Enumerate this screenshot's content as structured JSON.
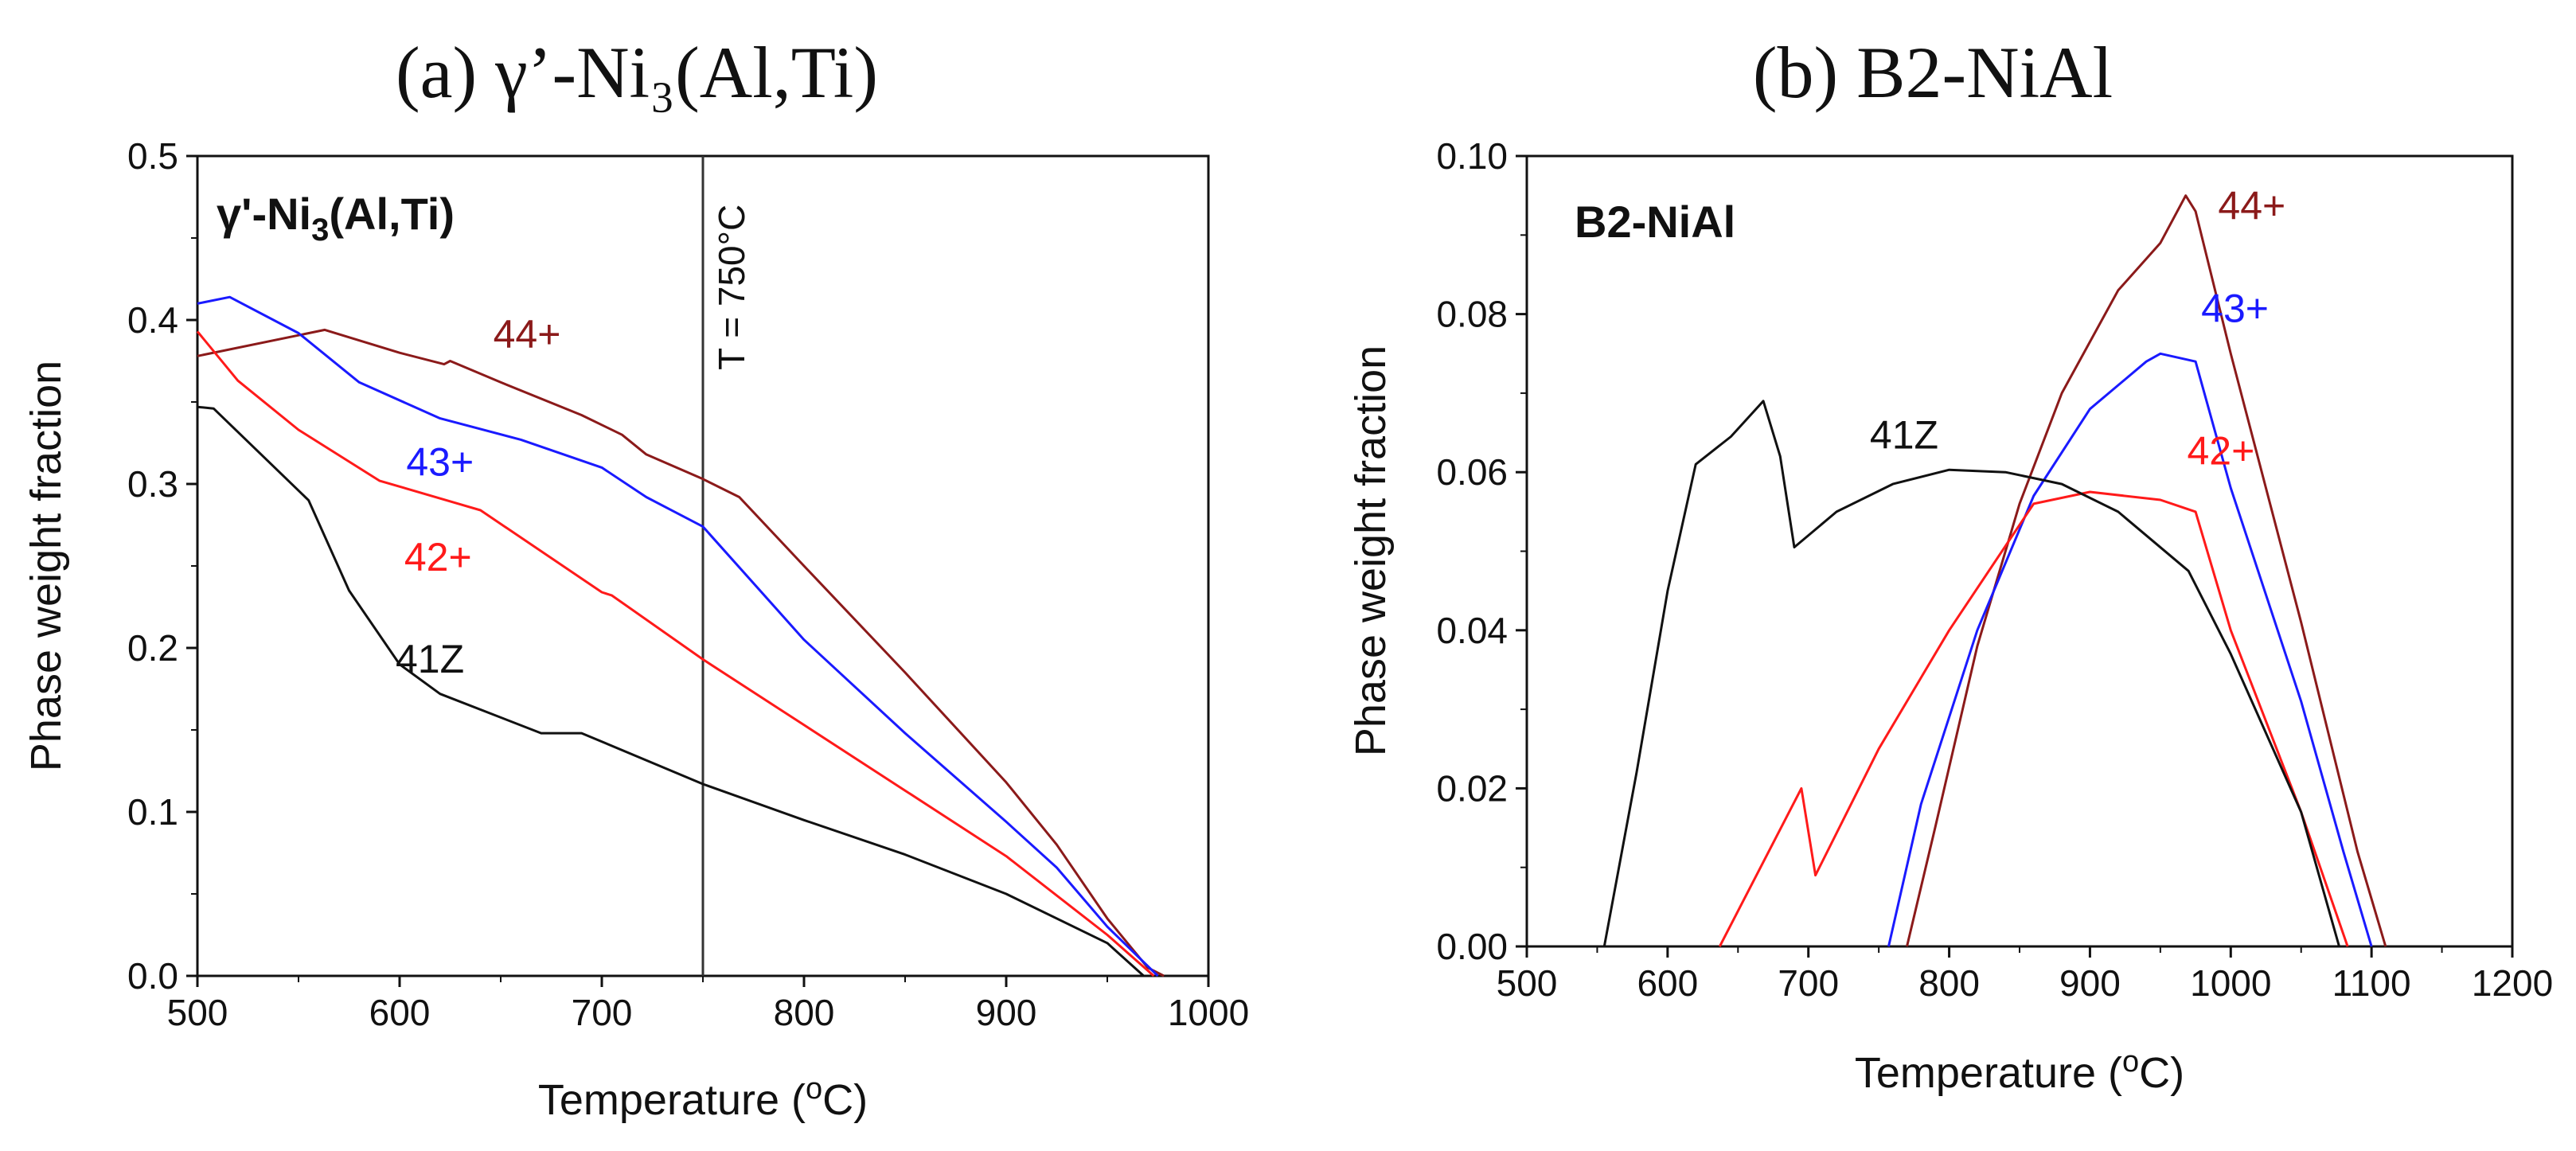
{
  "chart_data": [
    {
      "type": "line",
      "panel_title": "(a) γ’-Ni₃(Al,Ti)",
      "inset_label": "γ'-Ni₃(Al,Ti)",
      "xlabel": "Temperature (°C)",
      "ylabel": "Phase weight fraction",
      "xlim": [
        500,
        1000
      ],
      "ylim": [
        0,
        0.5
      ],
      "xticks": [
        500,
        600,
        700,
        800,
        900,
        1000
      ],
      "yticks": [
        0.0,
        0.1,
        0.2,
        0.3,
        0.4,
        0.5
      ],
      "xtick_labels": [
        "500",
        "600",
        "700",
        "800",
        "900",
        "1000"
      ],
      "ytick_labels": [
        "0.0",
        "0.1",
        "0.2",
        "0.3",
        "0.4",
        "0.5"
      ],
      "vline": {
        "x": 750,
        "label": "T = 750°C"
      },
      "series": [
        {
          "name": "44+",
          "color": "#8b1a1a",
          "points": [
            [
              500,
              0.378
            ],
            [
              563,
              0.394
            ],
            [
              600,
              0.38
            ],
            [
              622,
              0.373
            ],
            [
              625,
              0.375
            ],
            [
              650,
              0.362
            ],
            [
              690,
              0.342
            ],
            [
              710,
              0.33
            ],
            [
              722,
              0.318
            ],
            [
              750,
              0.303
            ],
            [
              768,
              0.292
            ],
            [
              800,
              0.25
            ],
            [
              850,
              0.185
            ],
            [
              900,
              0.118
            ],
            [
              925,
              0.08
            ],
            [
              950,
              0.035
            ],
            [
              970,
              0.005
            ],
            [
              978,
              0
            ]
          ],
          "label_at": [
            663,
            0.383
          ]
        },
        {
          "name": "43+",
          "color": "#1a1aff",
          "points": [
            [
              500,
              0.41
            ],
            [
              516,
              0.414
            ],
            [
              550,
              0.392
            ],
            [
              580,
              0.362
            ],
            [
              620,
              0.34
            ],
            [
              660,
              0.327
            ],
            [
              700,
              0.31
            ],
            [
              722,
              0.292
            ],
            [
              750,
              0.274
            ],
            [
              800,
              0.205
            ],
            [
              850,
              0.148
            ],
            [
              900,
              0.094
            ],
            [
              925,
              0.066
            ],
            [
              950,
              0.03
            ],
            [
              975,
              0
            ]
          ],
          "label_at": [
            620,
            0.305
          ]
        },
        {
          "name": "42+",
          "color": "#ff1a1a",
          "points": [
            [
              500,
              0.393
            ],
            [
              520,
              0.363
            ],
            [
              550,
              0.333
            ],
            [
              590,
              0.302
            ],
            [
              640,
              0.284
            ],
            [
              700,
              0.234
            ],
            [
              705,
              0.232
            ],
            [
              750,
              0.193
            ],
            [
              800,
              0.153
            ],
            [
              850,
              0.113
            ],
            [
              900,
              0.073
            ],
            [
              950,
              0.025
            ],
            [
              973,
              0
            ]
          ],
          "label_at": [
            619,
            0.247
          ]
        },
        {
          "name": "41Z",
          "color": "#111111",
          "points": [
            [
              500,
              0.347
            ],
            [
              508,
              0.346
            ],
            [
              555,
              0.29
            ],
            [
              575,
              0.235
            ],
            [
              600,
              0.19
            ],
            [
              620,
              0.172
            ],
            [
              670,
              0.148
            ],
            [
              690,
              0.148
            ],
            [
              750,
              0.117
            ],
            [
              800,
              0.095
            ],
            [
              850,
              0.074
            ],
            [
              900,
              0.05
            ],
            [
              950,
              0.02
            ],
            [
              968,
              0
            ]
          ],
          "label_at": [
            615,
            0.185
          ]
        }
      ]
    },
    {
      "type": "line",
      "panel_title": "(b) B2-NiAl",
      "inset_label": "B2-NiAl",
      "xlabel": "Temperature (°C)",
      "ylabel": "Phase weight fraction",
      "xlim": [
        500,
        1200
      ],
      "ylim": [
        0,
        0.1
      ],
      "xticks": [
        500,
        600,
        700,
        800,
        900,
        1000,
        1100,
        1200
      ],
      "yticks": [
        0.0,
        0.02,
        0.04,
        0.06,
        0.08,
        0.1
      ],
      "xtick_labels": [
        "500",
        "600",
        "700",
        "800",
        "900",
        "1000",
        "1100",
        "1200"
      ],
      "ytick_labels": [
        "0.00",
        "0.02",
        "0.04",
        "0.06",
        "0.08",
        "0.10"
      ],
      "series": [
        {
          "name": "44+",
          "color": "#8b1a1a",
          "points": [
            [
              770,
              0
            ],
            [
              790,
              0.015
            ],
            [
              820,
              0.038
            ],
            [
              850,
              0.056
            ],
            [
              880,
              0.07
            ],
            [
              920,
              0.083
            ],
            [
              950,
              0.089
            ],
            [
              968,
              0.095
            ],
            [
              975,
              0.093
            ],
            [
              1000,
              0.075
            ],
            [
              1050,
              0.041
            ],
            [
              1090,
              0.012
            ],
            [
              1110,
              0
            ]
          ],
          "label_at": [
            1015,
            0.092
          ]
        },
        {
          "name": "43+",
          "color": "#1a1aff",
          "points": [
            [
              757,
              0
            ],
            [
              780,
              0.018
            ],
            [
              820,
              0.04
            ],
            [
              860,
              0.057
            ],
            [
              900,
              0.068
            ],
            [
              940,
              0.074
            ],
            [
              950,
              0.075
            ],
            [
              975,
              0.074
            ],
            [
              1000,
              0.058
            ],
            [
              1050,
              0.031
            ],
            [
              1080,
              0.012
            ],
            [
              1100,
              0
            ]
          ],
          "label_at": [
            1003,
            0.079
          ]
        },
        {
          "name": "42+",
          "color": "#ff1a1a",
          "points": [
            [
              637,
              0
            ],
            [
              695,
              0.02
            ],
            [
              705,
              0.009
            ],
            [
              750,
              0.025
            ],
            [
              800,
              0.04
            ],
            [
              860,
              0.056
            ],
            [
              900,
              0.0575
            ],
            [
              950,
              0.0565
            ],
            [
              975,
              0.055
            ],
            [
              1000,
              0.04
            ],
            [
              1050,
              0.017
            ],
            [
              1083,
              0
            ]
          ],
          "label_at": [
            993,
            0.061
          ]
        },
        {
          "name": "41Z",
          "color": "#111111",
          "points": [
            [
              555,
              0
            ],
            [
              578,
              0.022
            ],
            [
              600,
              0.045
            ],
            [
              620,
              0.061
            ],
            [
              645,
              0.0645
            ],
            [
              668,
              0.069
            ],
            [
              680,
              0.062
            ],
            [
              690,
              0.0505
            ],
            [
              720,
              0.055
            ],
            [
              760,
              0.0585
            ],
            [
              800,
              0.0603
            ],
            [
              840,
              0.06
            ],
            [
              880,
              0.0585
            ],
            [
              920,
              0.055
            ],
            [
              970,
              0.0475
            ],
            [
              1000,
              0.037
            ],
            [
              1050,
              0.017
            ],
            [
              1077,
              0
            ]
          ],
          "label_at": [
            768,
            0.063
          ]
        }
      ]
    }
  ]
}
